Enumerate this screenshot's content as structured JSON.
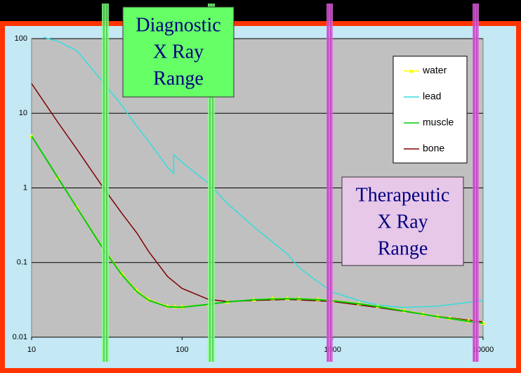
{
  "chart_data": {
    "type": "line",
    "xscale": "log",
    "yscale": "log",
    "xlim": [
      10,
      10000
    ],
    "ylim": [
      0.01,
      100
    ],
    "xticks": [
      10,
      100,
      1000,
      10000
    ],
    "yticks": [
      100,
      10,
      1,
      0.1,
      0.01
    ],
    "grid": true,
    "legend": "upper right",
    "series": [
      {
        "name": "water",
        "color": "#ffff00",
        "marker": "triangle",
        "x": [
          10,
          15,
          20,
          30,
          40,
          50,
          60,
          80,
          90,
          100,
          150,
          200,
          300,
          400,
          500,
          600,
          800,
          1000,
          1500,
          2000,
          3000,
          4000,
          5000,
          6000,
          8000,
          10000
        ],
        "values": [
          4.94,
          1.37,
          0.554,
          0.155,
          0.0695,
          0.0422,
          0.0319,
          0.026,
          0.0257,
          0.0255,
          0.0276,
          0.0297,
          0.0319,
          0.033,
          0.033,
          0.0329,
          0.0321,
          0.0311,
          0.0283,
          0.026,
          0.0227,
          0.0205,
          0.019,
          0.018,
          0.0165,
          0.0155
        ]
      },
      {
        "name": "lead",
        "color": "#33dddd",
        "x": [
          12,
          15,
          20,
          30,
          40,
          50,
          60,
          80,
          88,
          88,
          100,
          150,
          200,
          300,
          500,
          600,
          800,
          1000,
          1500,
          2000,
          3000,
          5000,
          10000
        ],
        "values": [
          104,
          92,
          69,
          25.7,
          12.6,
          6.7,
          4.2,
          1.9,
          1.55,
          2.8,
          2.2,
          1.15,
          0.62,
          0.3,
          0.13,
          0.085,
          0.055,
          0.04,
          0.031,
          0.027,
          0.025,
          0.026,
          0.031
        ]
      },
      {
        "name": "muscle",
        "color": "#00cc00",
        "x": [
          10,
          15,
          20,
          30,
          40,
          50,
          60,
          80,
          100,
          150,
          200,
          300,
          400,
          500,
          600,
          800,
          1000,
          1500,
          2000,
          3000,
          4000,
          5000,
          6000,
          8000,
          10000
        ],
        "values": [
          4.96,
          1.36,
          0.544,
          0.151,
          0.0677,
          0.0409,
          0.0312,
          0.0255,
          0.0252,
          0.0276,
          0.0297,
          0.0317,
          0.0325,
          0.0327,
          0.0326,
          0.0318,
          0.0308,
          0.028,
          0.0257,
          0.0224,
          0.0203,
          0.0188,
          0.0178,
          0.0163,
          0.0154
        ]
      },
      {
        "name": "bone",
        "color": "#800000",
        "x": [
          10,
          15,
          20,
          30,
          40,
          50,
          60,
          80,
          100,
          150,
          200,
          300,
          500,
          1000,
          2000,
          5000,
          10000
        ],
        "values": [
          25,
          7.5,
          3.3,
          1.0,
          0.45,
          0.25,
          0.14,
          0.065,
          0.045,
          0.032,
          0.03,
          0.031,
          0.032,
          0.03,
          0.025,
          0.019,
          0.016
        ]
      }
    ],
    "annotations": [
      {
        "lines": [
          "Diagnostic",
          "X Ray",
          "Range"
        ],
        "color": "#66ff66"
      },
      {
        "lines": [
          "Therapeutic",
          "X Ray",
          "Range"
        ],
        "color": "#e8c8e8"
      }
    ]
  }
}
